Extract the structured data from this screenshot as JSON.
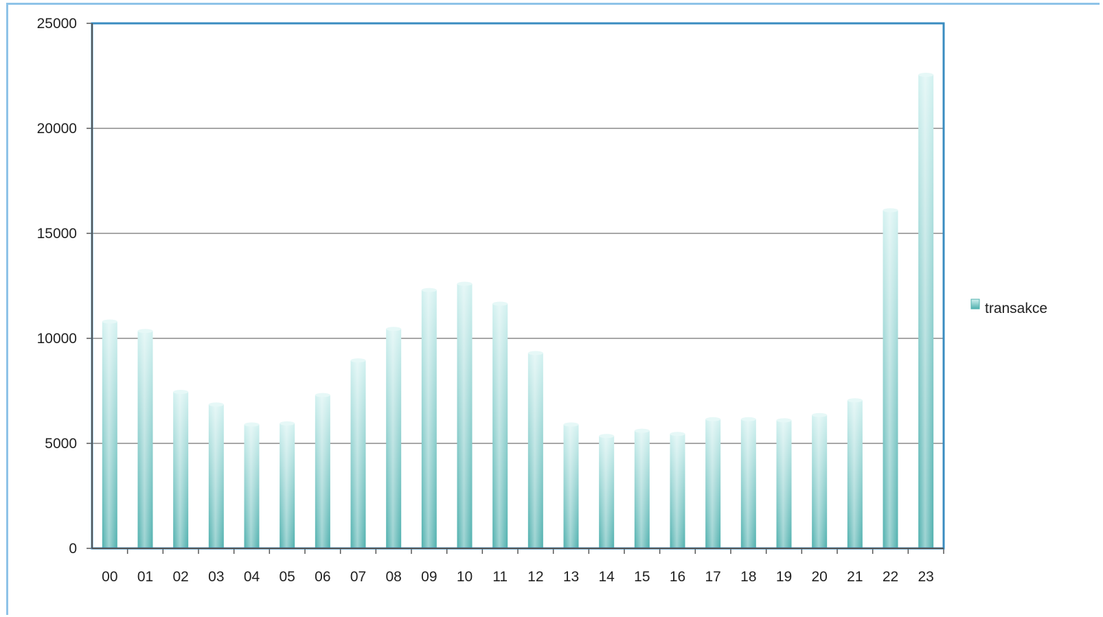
{
  "chart_data": {
    "type": "bar",
    "categories": [
      "00",
      "01",
      "02",
      "03",
      "04",
      "05",
      "06",
      "07",
      "08",
      "09",
      "10",
      "11",
      "12",
      "13",
      "14",
      "15",
      "16",
      "17",
      "18",
      "19",
      "20",
      "21",
      "22",
      "23"
    ],
    "series": [
      {
        "name": "transakce",
        "values": [
          10800,
          10350,
          7450,
          6850,
          5900,
          5950,
          7300,
          8950,
          10450,
          12300,
          12600,
          11650,
          9300,
          5900,
          5350,
          5600,
          5450,
          6150,
          6150,
          6100,
          6350,
          7050,
          16100,
          22550
        ]
      }
    ],
    "ylim": [
      0,
      25000
    ],
    "yticks": [
      0,
      5000,
      10000,
      15000,
      20000,
      25000
    ],
    "grid": true,
    "legend": "right",
    "colors": {
      "bar_dark": "#4fb0ae",
      "bar_light": "#d2f1f0",
      "axis_frame": "#3a8cc0",
      "gridline": "#8a8a8a"
    }
  }
}
